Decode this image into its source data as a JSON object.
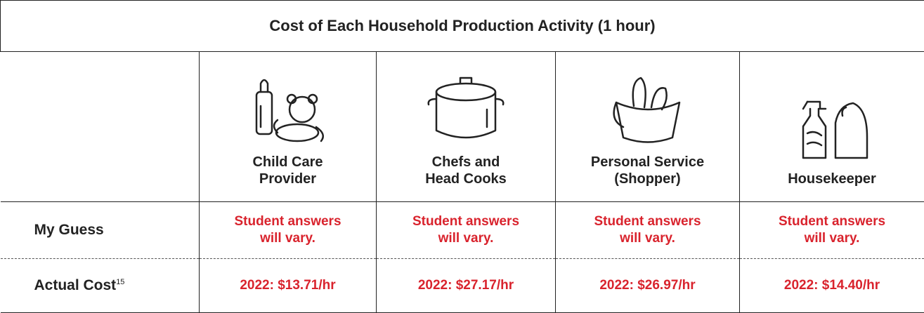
{
  "table": {
    "title": "Cost of Each Household Production Activity (1 hour)",
    "columns": [
      {
        "lines": [
          "Child Care",
          "Provider"
        ]
      },
      {
        "lines": [
          "Chefs and",
          "Head Cooks"
        ]
      },
      {
        "lines": [
          "Personal Service",
          "(Shopper)"
        ]
      },
      {
        "lines": [
          "Housekeeper"
        ]
      }
    ],
    "rows": [
      {
        "label": "My Guess",
        "cells": [
          [
            "Student answers",
            "will vary."
          ],
          [
            "Student answers",
            "will vary."
          ],
          [
            "Student answers",
            "will vary."
          ],
          [
            "Student answers",
            "will vary."
          ]
        ]
      },
      {
        "label": "Actual Cost",
        "note": "15",
        "cells": [
          [
            "2022: $13.71/hr"
          ],
          [
            "2022: $27.17/hr"
          ],
          [
            "2022: $26.97/hr"
          ],
          [
            "2022: $14.40/hr"
          ]
        ]
      }
    ]
  }
}
